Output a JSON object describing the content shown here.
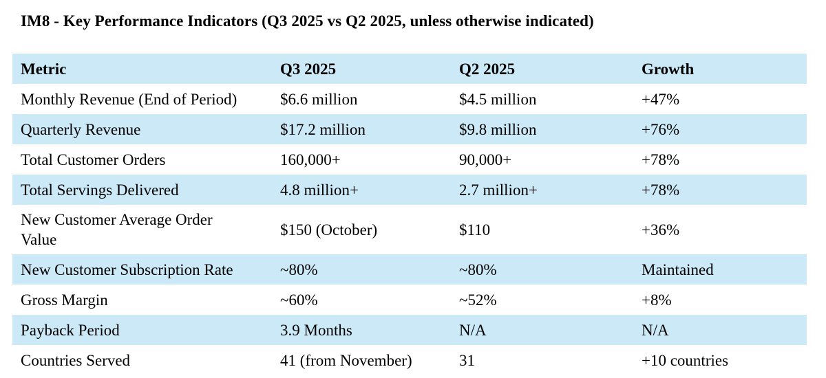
{
  "title": "IM8 - Key Performance Indicators (Q3 2025 vs Q2 2025, unless otherwise indicated)",
  "colors": {
    "row_highlight": "#cce9f8",
    "row_alternate": "#ffffff",
    "text": "#000000"
  },
  "table": {
    "columns": {
      "metric": "Metric",
      "q3": "Q3 2025",
      "q2": "Q2 2025",
      "growth": "Growth"
    },
    "rows": [
      {
        "metric": "Monthly Revenue (End of Period)",
        "q3": "$6.6 million",
        "q2": "$4.5 million",
        "growth": "+47%"
      },
      {
        "metric": "Quarterly Revenue",
        "q3": "$17.2 million",
        "q2": "$9.8 million",
        "growth": "+76%"
      },
      {
        "metric": "Total Customer Orders",
        "q3": "160,000+",
        "q2": "90,000+",
        "growth": "+78%"
      },
      {
        "metric": "Total Servings Delivered",
        "q3": "4.8 million+",
        "q2": "2.7 million+",
        "growth": "+78%"
      },
      {
        "metric": "New Customer Average Order\nValue",
        "q3": "$150 (October)",
        "q2": "$110",
        "growth": "+36%"
      },
      {
        "metric": "New Customer Subscription Rate",
        "q3": "~80%",
        "q2": "~80%",
        "growth": "Maintained"
      },
      {
        "metric": "Gross Margin",
        "q3": "~60%",
        "q2": "~52%",
        "growth": "+8%"
      },
      {
        "metric": "Payback Period",
        "q3": "3.9 Months",
        "q2": "N/A",
        "growth": "N/A"
      },
      {
        "metric": "Countries Served",
        "q3": "41 (from November)",
        "q2": "31",
        "growth": "+10 countries"
      }
    ]
  }
}
